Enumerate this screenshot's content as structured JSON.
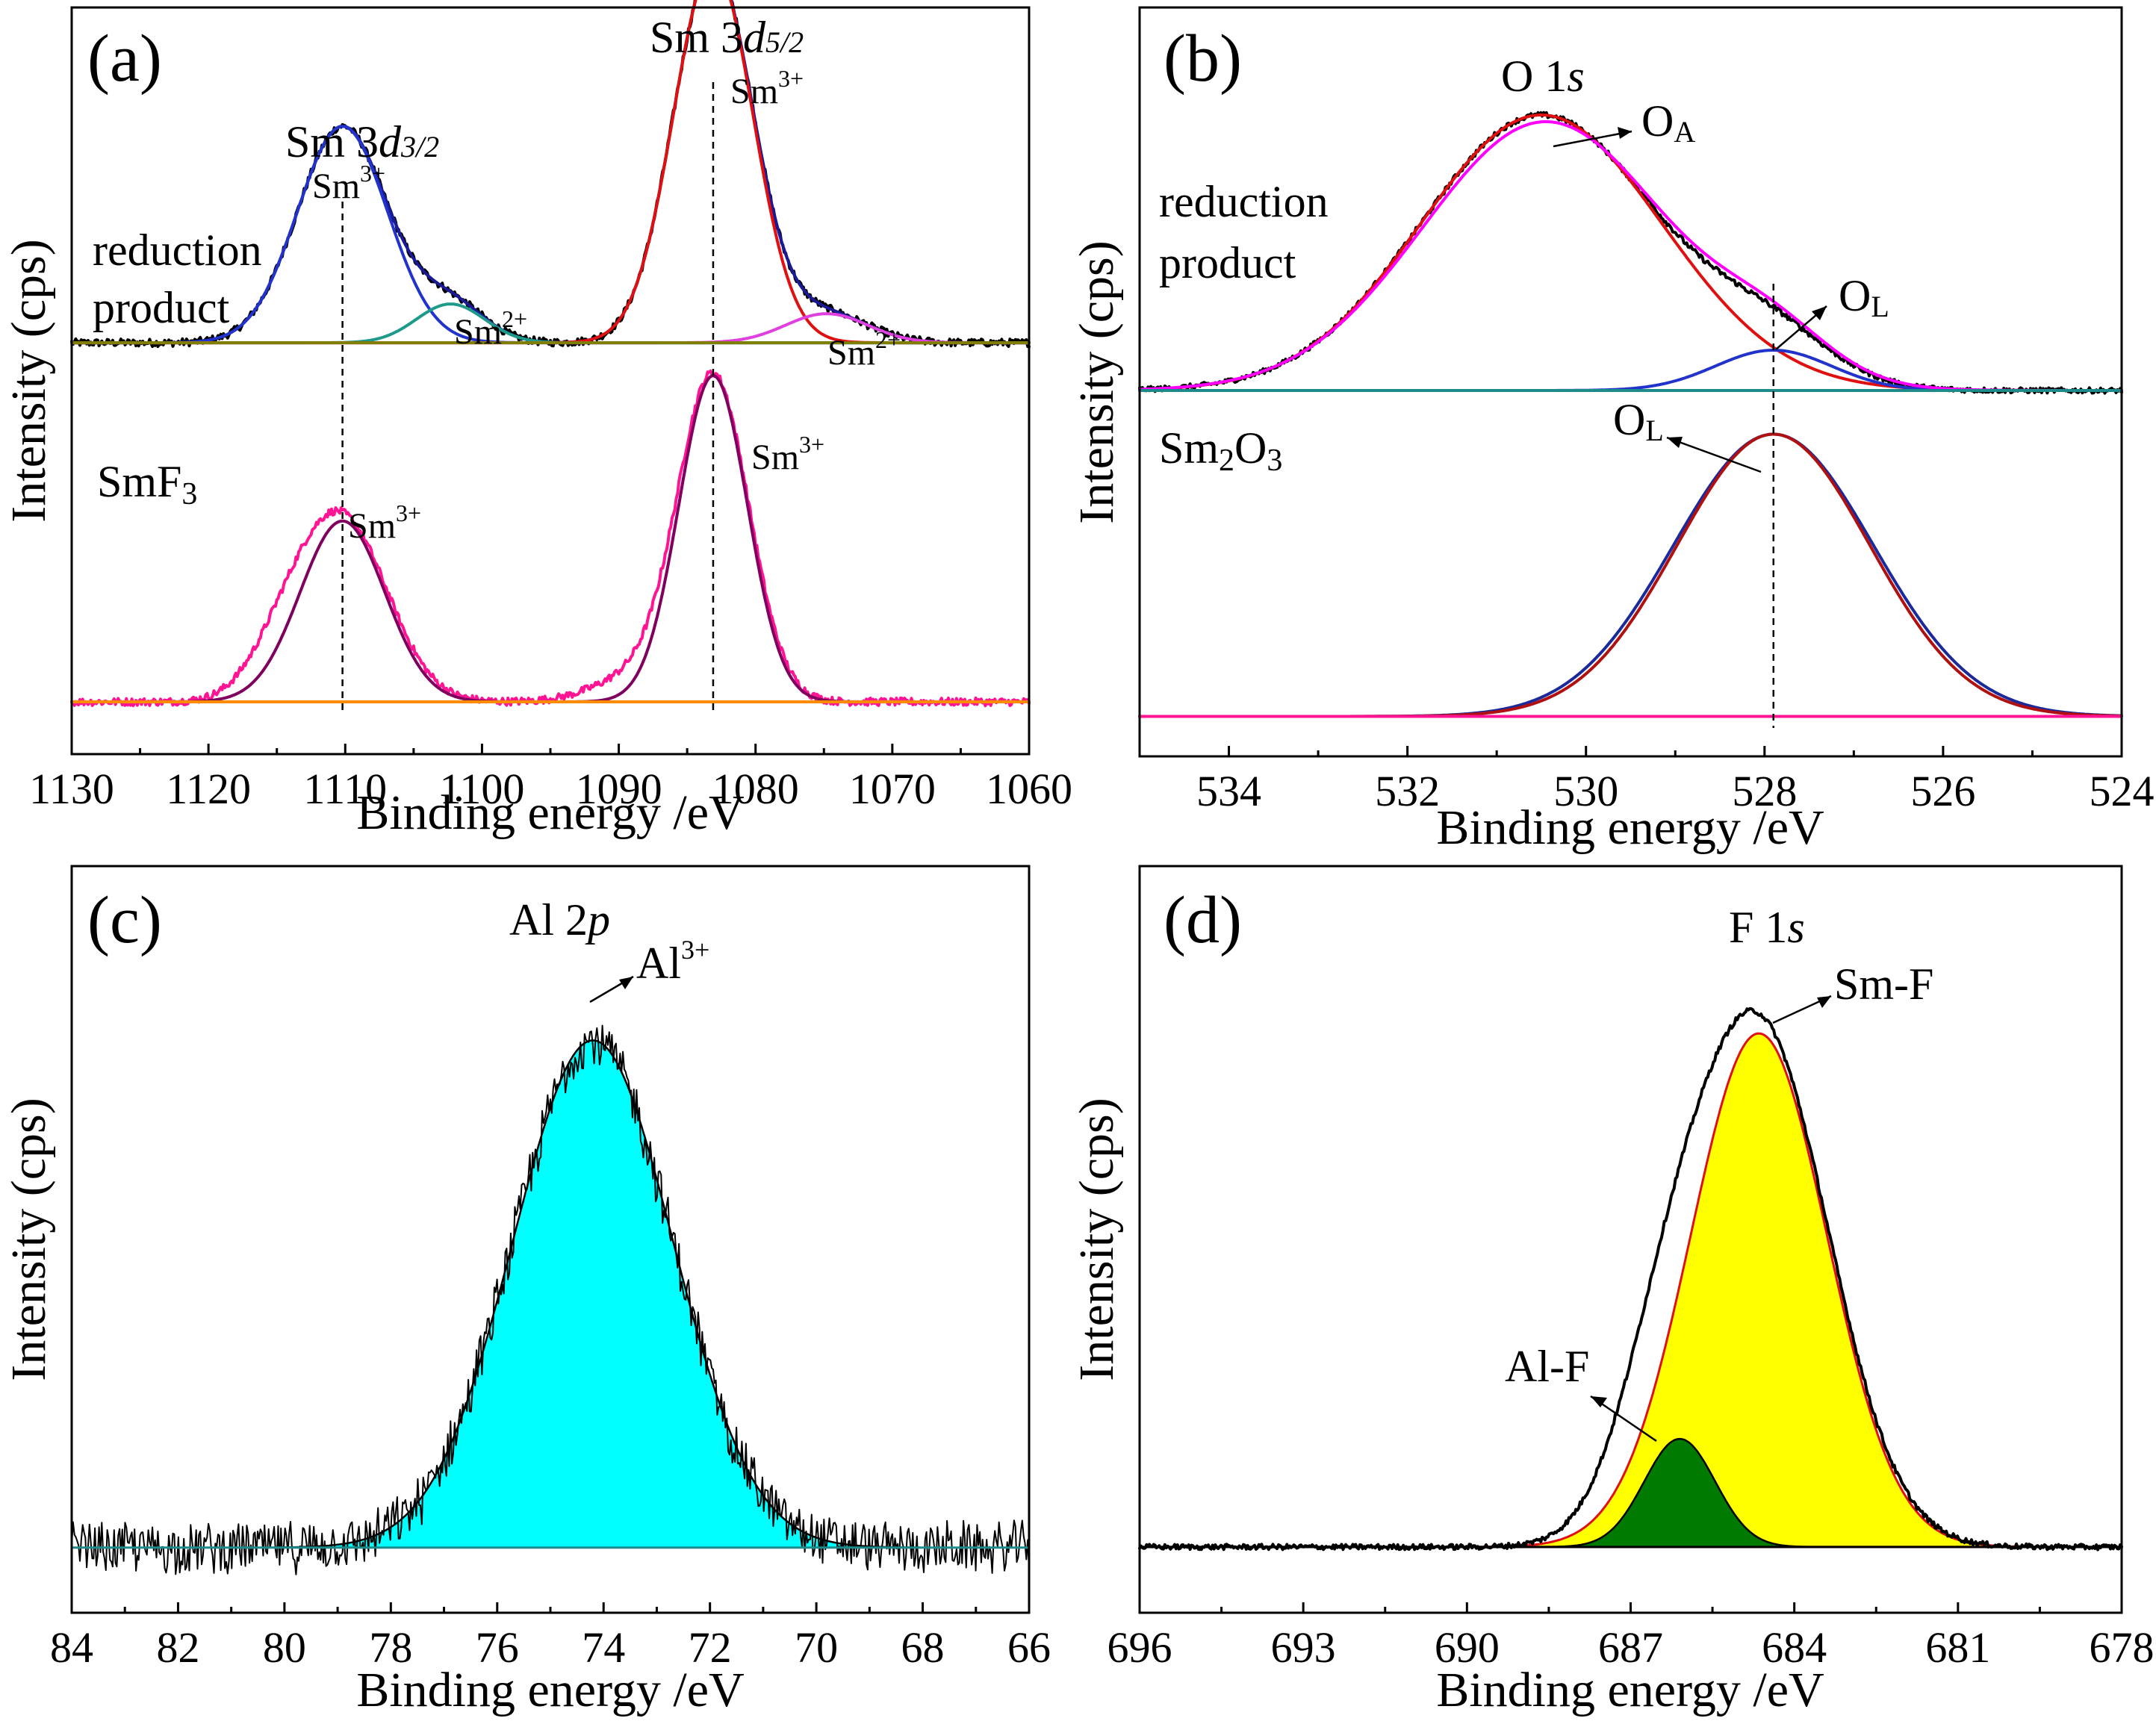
{
  "chart_data": [
    {
      "panel": "(a)",
      "type": "line",
      "xlabel": "Binding energy /eV",
      "ylabel": "Intensity (cps)",
      "xlim": [
        1130,
        1060
      ],
      "xticks": [
        "1130",
        "1120",
        "1110",
        "1100",
        "1090",
        "1080",
        "1070",
        "1060"
      ],
      "ylim": [
        0,
        1
      ],
      "offsets": {
        "reduction_product": 0.556,
        "smf3": 0.0
      },
      "title": "Sm 3d",
      "annotations": {
        "sm3d52_prefix": "Sm 3",
        "sm3d52_italic": "d",
        "sm3d52_sub": "5/2",
        "sm3d32_prefix": "Sm 3",
        "sm3d32_italic": "d",
        "sm3d32_sub": "3/2",
        "sm_text": "Sm",
        "three_plus": "3+",
        "two_plus": "2+",
        "reduction_line1": "reduction",
        "reduction_line2": "product",
        "smf3_main": "SmF",
        "smf3_sub": "3"
      },
      "guides_x": [
        1110.2,
        1083.1
      ],
      "series": [
        {
          "name": "reduction product raw",
          "color": "#000000",
          "offset": "reduction_product",
          "baseline": 0,
          "peaks": [
            {
              "center": 1110.2,
              "height": 0.335,
              "sigma": 3.3
            },
            {
              "center": 1102.3,
              "height": 0.06,
              "sigma": 2.5
            },
            {
              "center": 1083.1,
              "height": 0.585,
              "sigma": 2.9
            },
            {
              "center": 1074.8,
              "height": 0.045,
              "sigma": 3.0
            }
          ],
          "noise": 0.006
        },
        {
          "name": "reduction product envelope",
          "color": "#1a1a99",
          "offset": "reduction_product",
          "baseline": 0,
          "peaks": [
            {
              "center": 1110.2,
              "height": 0.335,
              "sigma": 3.3
            },
            {
              "center": 1102.3,
              "height": 0.06,
              "sigma": 2.5
            },
            {
              "center": 1083.1,
              "height": 0.585,
              "sigma": 2.9
            },
            {
              "center": 1074.8,
              "height": 0.045,
              "sigma": 3.0
            }
          ]
        },
        {
          "name": "Sm3+ 3d3/2 fit",
          "color": "#2233cc",
          "offset": "reduction_product",
          "baseline": 0,
          "peaks": [
            {
              "center": 1110.2,
              "height": 0.335,
              "sigma": 3.3
            }
          ]
        },
        {
          "name": "Sm2+ 3d3/2 fit",
          "color": "#1e9a8a",
          "offset": "reduction_product",
          "baseline": 0,
          "peaks": [
            {
              "center": 1102.3,
              "height": 0.06,
              "sigma": 2.5
            }
          ]
        },
        {
          "name": "Sm3+ 3d5/2 fit",
          "color": "#e01010",
          "offset": "reduction_product",
          "baseline": 0,
          "peaks": [
            {
              "center": 1083.1,
              "height": 0.585,
              "sigma": 2.9
            }
          ]
        },
        {
          "name": "Sm2+ 3d5/2 fit",
          "color": "#e040e0",
          "offset": "reduction_product",
          "baseline": 0,
          "peaks": [
            {
              "center": 1074.8,
              "height": 0.045,
              "sigma": 3.0
            }
          ]
        },
        {
          "name": "reduction product background",
          "color": "#808000",
          "offset": "reduction_product",
          "baseline": 0,
          "peaks": []
        },
        {
          "name": "SmF3 raw",
          "color": "#ff1493",
          "offset": "smf3",
          "baseline": 0,
          "peaks": [
            {
              "center": 1110.2,
              "height": 0.28,
              "sigma": 3.3
            },
            {
              "center": 1114.5,
              "height": 0.06,
              "sigma": 2.5
            },
            {
              "center": 1083.1,
              "height": 0.505,
              "sigma": 2.6
            },
            {
              "center": 1089.0,
              "height": 0.035,
              "sigma": 3.0
            }
          ],
          "noise": 0.006
        },
        {
          "name": "SmF3 fit",
          "color": "#800060",
          "offset": "smf3",
          "baseline": 0,
          "peaks": [
            {
              "center": 1110.2,
              "height": 0.28,
              "sigma": 3.1
            },
            {
              "center": 1083.1,
              "height": 0.505,
              "sigma": 2.5
            }
          ]
        },
        {
          "name": "SmF3 background",
          "color": "#ff8c00",
          "offset": "smf3",
          "baseline": 0,
          "peaks": []
        }
      ]
    },
    {
      "panel": "(b)",
      "type": "line",
      "xlabel": "Binding energy /eV",
      "ylabel": "Intensity (cps)",
      "xlim": [
        535,
        524
      ],
      "xticks": [
        "534",
        "532",
        "530",
        "528",
        "526",
        "524"
      ],
      "ylim": [
        0,
        1
      ],
      "offsets": {
        "reduction_product": 0.51,
        "sm2o3": 0.0
      },
      "title": "O 1s",
      "annotations": {
        "o1s_prefix": "O 1",
        "o1s_italic": "s",
        "oa_main": "O",
        "oa_sub": "A",
        "ol_main": "O",
        "ol_sub": "L",
        "reduction_line1": "reduction",
        "reduction_line2": "product",
        "sm2o3_a": "Sm",
        "sm2o3_b": "2",
        "sm2o3_c": "O",
        "sm2o3_d": "3"
      },
      "guides_x": [
        527.9
      ],
      "series": [
        {
          "name": "reduction product raw",
          "color": "#000000",
          "offset": "reduction_product",
          "baseline": 0,
          "peaks": [
            {
              "center": 530.5,
              "height": 0.41,
              "sigma": 1.35
            },
            {
              "center": 527.9,
              "height": 0.06,
              "sigma": 0.65
            }
          ],
          "noise": 0.004
        },
        {
          "name": "O_A fit",
          "color": "#e01010",
          "offset": "reduction_product",
          "baseline": 0,
          "peaks": [
            {
              "center": 530.5,
              "height": 0.41,
              "sigma": 1.35
            }
          ]
        },
        {
          "name": "O_L fit",
          "color": "#2233cc",
          "offset": "reduction_product",
          "baseline": 0,
          "peaks": [
            {
              "center": 527.9,
              "height": 0.06,
              "sigma": 0.65
            }
          ]
        },
        {
          "name": "reduction product envelope",
          "color": "#ff00ff",
          "offset": "reduction_product",
          "baseline": 0,
          "peaks": [
            {
              "center": 530.45,
              "height": 0.4,
              "sigma": 1.38
            },
            {
              "center": 527.9,
              "height": 0.06,
              "sigma": 0.65
            }
          ]
        },
        {
          "name": "reduction product background",
          "color": "#1e8b8b",
          "offset": "reduction_product",
          "baseline": 0,
          "peaks": []
        },
        {
          "name": "Sm2O3 raw",
          "color": "#1a2a9a",
          "offset": "sm2o3",
          "baseline": 0.025,
          "peaks": [
            {
              "center": 527.9,
              "height": 0.42,
              "sigma": 1.12
            }
          ],
          "noise": 0.0
        },
        {
          "name": "Sm2O3 fit",
          "color": "#b01010",
          "offset": "sm2o3",
          "baseline": 0.025,
          "peaks": [
            {
              "center": 527.9,
              "height": 0.42,
              "sigma": 1.08
            }
          ]
        },
        {
          "name": "Sm2O3 background",
          "color": "#ff1493",
          "offset": "sm2o3",
          "baseline": 0.025,
          "peaks": []
        }
      ]
    },
    {
      "panel": "(c)",
      "type": "area",
      "xlabel": "Binding energy /eV",
      "ylabel": "Intensity (cps)",
      "xlim": [
        84,
        66
      ],
      "xticks": [
        "84",
        "82",
        "80",
        "78",
        "76",
        "74",
        "72",
        "70",
        "68",
        "66"
      ],
      "ylim": [
        0,
        1
      ],
      "title": "Al 2p",
      "annotations": {
        "al2p_prefix": "Al 2",
        "al2p_italic": "p",
        "al_main": "Al",
        "al_sup": "3+"
      },
      "series": [
        {
          "name": "Al3+ fit",
          "color": "#00ffff",
          "fill": true,
          "baseline": 0.02,
          "peaks": [
            {
              "center": 74.2,
              "height": 0.79,
              "sigma": 1.5
            }
          ]
        },
        {
          "name": "Al 2p raw",
          "color": "#000000",
          "baseline": 0.02,
          "peaks": [
            {
              "center": 74.2,
              "height": 0.79,
              "sigma": 1.5
            }
          ],
          "noise": 0.045
        }
      ]
    },
    {
      "panel": "(d)",
      "type": "area",
      "xlabel": "Binding energy /eV",
      "ylabel": "Intensity (cps)",
      "xlim": [
        696,
        678
      ],
      "xticks": [
        "696",
        "693",
        "690",
        "687",
        "684",
        "681",
        "678"
      ],
      "ylim": [
        0,
        1
      ],
      "title": "F 1s",
      "annotations": {
        "f1s_prefix": "F 1",
        "f1s_italic": "s",
        "smf_label": "Sm-F",
        "alf_label": "Al-F"
      },
      "series": [
        {
          "name": "Sm-F fit",
          "color": "#ffff00",
          "fill": true,
          "edge": "#e01010",
          "baseline": 0.02,
          "peaks": [
            {
              "center": 684.65,
              "height": 0.76,
              "sigma": 1.25
            }
          ]
        },
        {
          "name": "Al-F fit",
          "color": "#007a00",
          "fill": true,
          "baseline": 0.02,
          "peaks": [
            {
              "center": 686.1,
              "height": 0.16,
              "sigma": 0.65
            }
          ]
        },
        {
          "name": "F 1s raw",
          "color": "#000000",
          "baseline": 0.02,
          "peaks": [
            {
              "center": 684.65,
              "height": 0.77,
              "sigma": 1.28
            },
            {
              "center": 686.4,
              "height": 0.17,
              "sigma": 0.85
            }
          ],
          "noise": 0.004
        }
      ]
    }
  ]
}
